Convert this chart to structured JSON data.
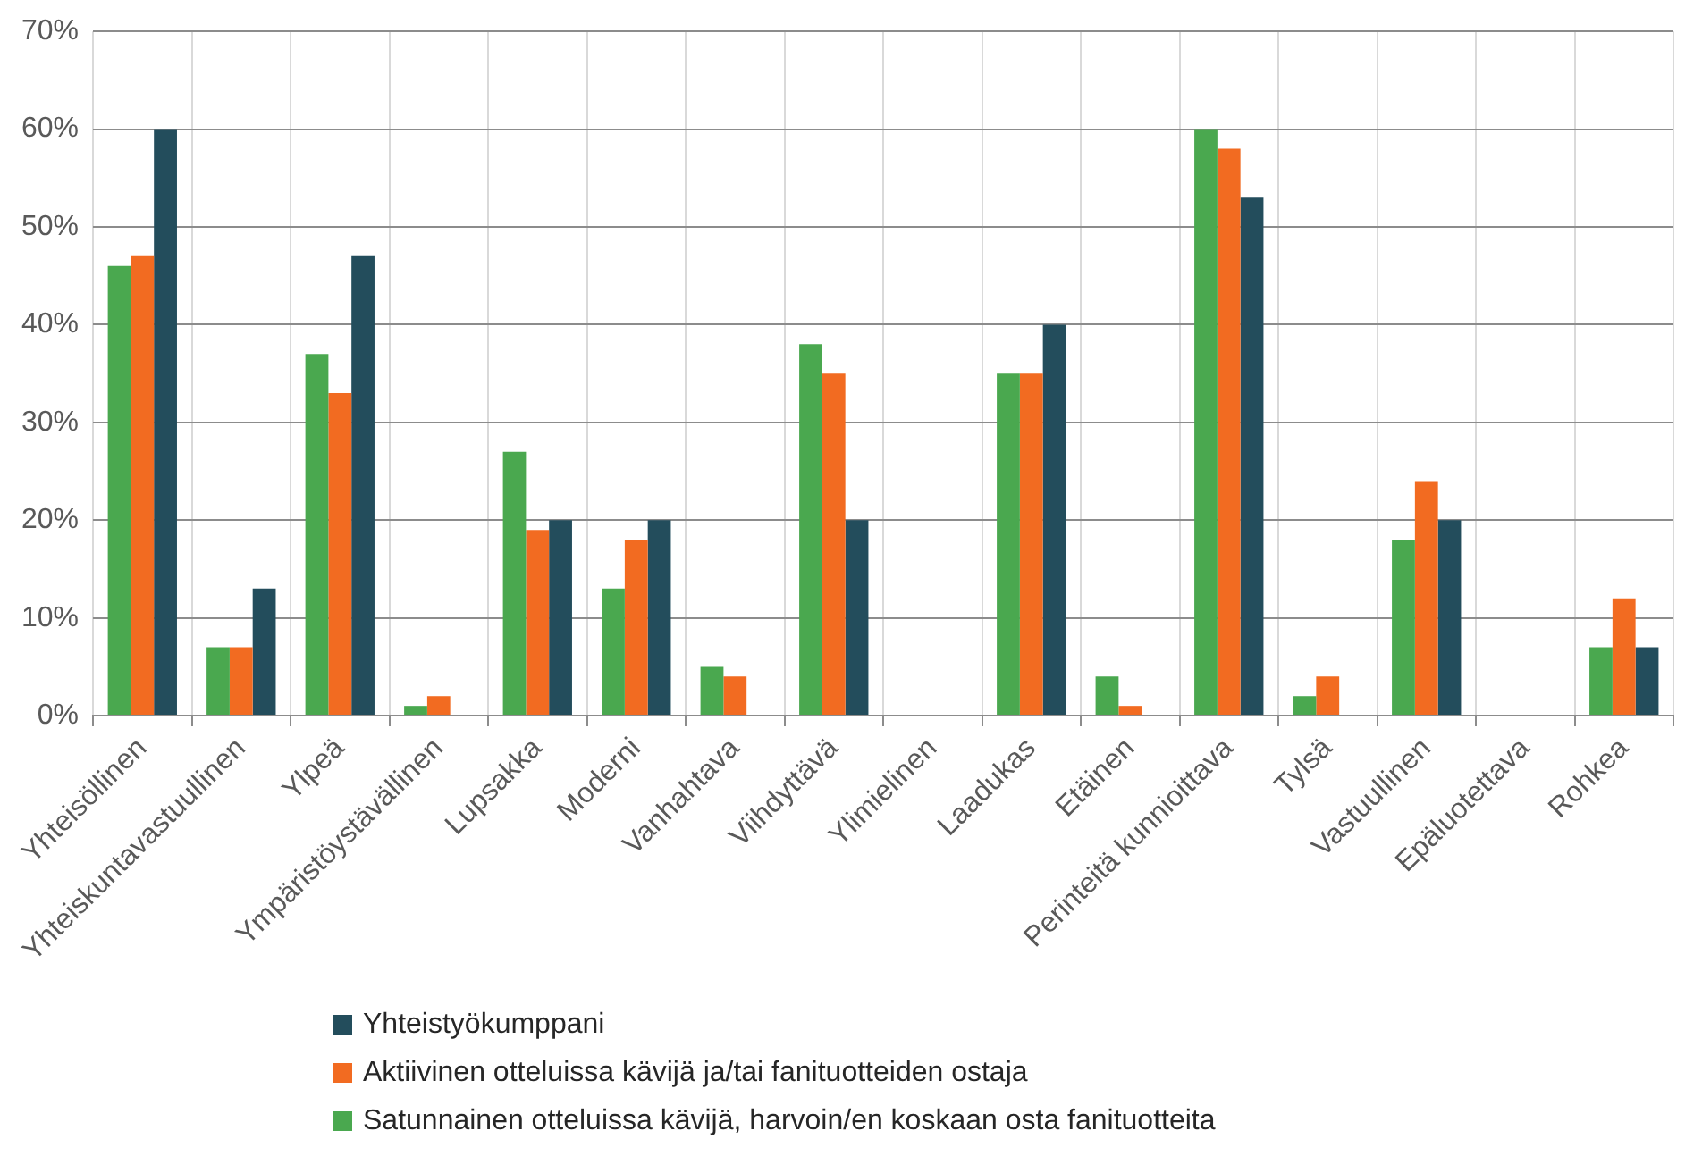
{
  "chart_data": {
    "type": "bar",
    "categories": [
      "Yhteisöllinen",
      "Yhteiskuntavastuullinen",
      "Ylpeä",
      "Ympäristöystävällinen",
      "Lupsakka",
      "Moderni",
      "Vanhahtava",
      "Viihdyttävä",
      "Ylimielinen",
      "Laadukas",
      "Etäinen",
      "Perinteitä kunnioittava",
      "Tylsä",
      "Vastuullinen",
      "Epäluotettava",
      "Rohkea"
    ],
    "series": [
      {
        "name": "Satunnainen otteluissa kävijä, harvoin/en koskaan osta fanituotteita",
        "color": "#4aa84f",
        "values": [
          46,
          7,
          37,
          1,
          27,
          13,
          5,
          38,
          0,
          35,
          4,
          60,
          2,
          18,
          0,
          7
        ]
      },
      {
        "name": "Aktiivinen otteluissa kävijä ja/tai fanituotteiden ostaja",
        "color": "#f26b21",
        "values": [
          47,
          7,
          33,
          2,
          19,
          18,
          4,
          35,
          0,
          35,
          1,
          58,
          4,
          24,
          0,
          12
        ]
      },
      {
        "name": "Yhteistyökumppani",
        "color": "#234d5c",
        "values": [
          60,
          13,
          47,
          0,
          20,
          20,
          0,
          20,
          0,
          40,
          0,
          53,
          0,
          20,
          0,
          7
        ]
      }
    ],
    "ylim": [
      0,
      70
    ],
    "yticks": [
      {
        "value": 0,
        "label": "0%"
      },
      {
        "value": 10,
        "label": "10%"
      },
      {
        "value": 20,
        "label": "20%"
      },
      {
        "value": 30,
        "label": "30%"
      },
      {
        "value": 40,
        "label": "40%"
      },
      {
        "value": 50,
        "label": "50%"
      },
      {
        "value": 60,
        "label": "60%"
      },
      {
        "value": 70,
        "label": "70%"
      }
    ],
    "grid": true,
    "legend": "bottom"
  }
}
